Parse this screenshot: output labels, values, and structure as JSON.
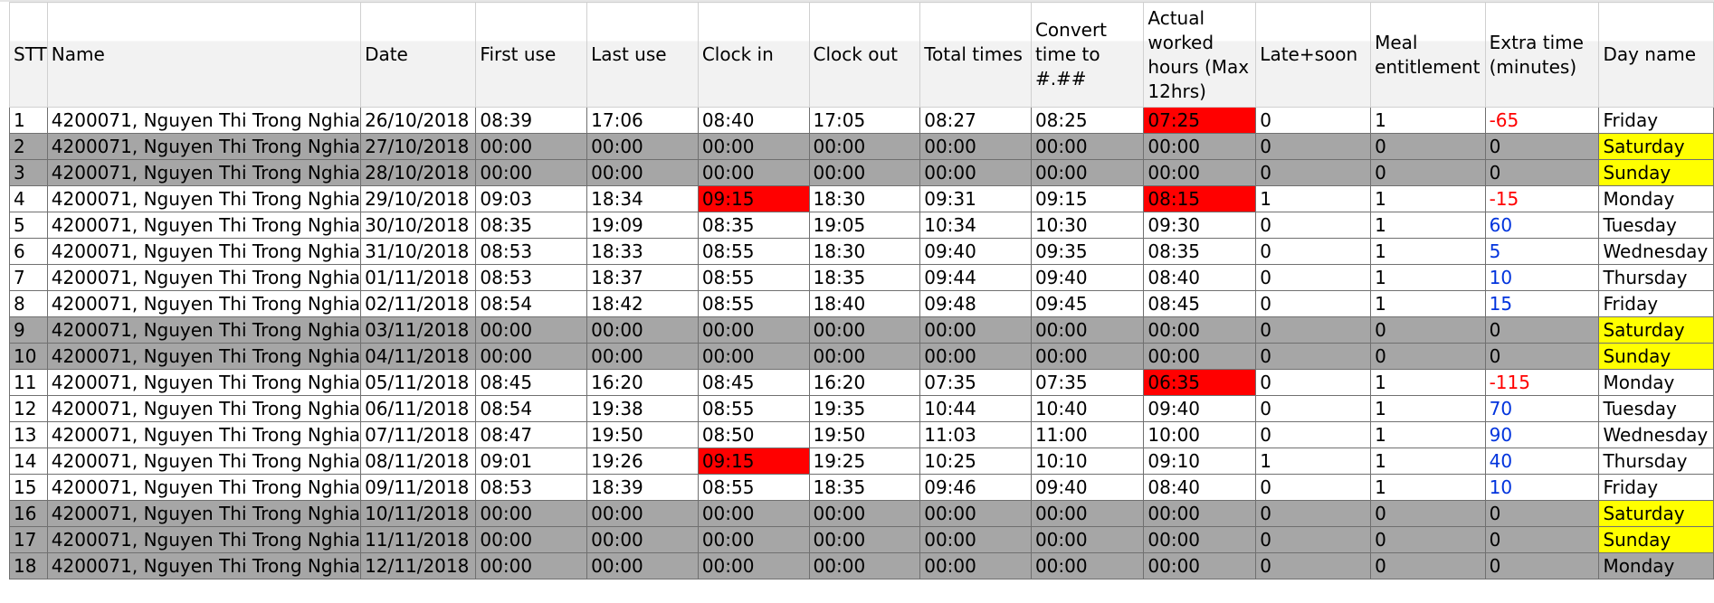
{
  "columns": [
    "STT",
    "Name",
    "Date",
    "First use",
    "Last use",
    "Clock in",
    "Clock out",
    "Total times",
    "Convert time to #.##",
    "Actual worked hours (Max 12hrs)",
    "Late+soon",
    "Meal entitlement",
    "Extra time (minutes)",
    "Day name"
  ],
  "rows": [
    [
      "1",
      "4200071, Nguyen Thi Trong Nghia",
      "26/10/2018",
      "08:39",
      "17:06",
      "08:40",
      "17:05",
      "08:27",
      "08:25",
      "07:25",
      "0",
      "1",
      "-65",
      "Friday"
    ],
    [
      "2",
      "4200071, Nguyen Thi Trong Nghia",
      "27/10/2018",
      "00:00",
      "00:00",
      "00:00",
      "00:00",
      "00:00",
      "00:00",
      "00:00",
      "0",
      "0",
      "0",
      "Saturday"
    ],
    [
      "3",
      "4200071, Nguyen Thi Trong Nghia",
      "28/10/2018",
      "00:00",
      "00:00",
      "00:00",
      "00:00",
      "00:00",
      "00:00",
      "00:00",
      "0",
      "0",
      "0",
      "Sunday"
    ],
    [
      "4",
      "4200071, Nguyen Thi Trong Nghia",
      "29/10/2018",
      "09:03",
      "18:34",
      "09:15",
      "18:30",
      "09:31",
      "09:15",
      "08:15",
      "1",
      "1",
      "-15",
      "Monday"
    ],
    [
      "5",
      "4200071, Nguyen Thi Trong Nghia",
      "30/10/2018",
      "08:35",
      "19:09",
      "08:35",
      "19:05",
      "10:34",
      "10:30",
      "09:30",
      "0",
      "1",
      "60",
      "Tuesday"
    ],
    [
      "6",
      "4200071, Nguyen Thi Trong Nghia",
      "31/10/2018",
      "08:53",
      "18:33",
      "08:55",
      "18:30",
      "09:40",
      "09:35",
      "08:35",
      "0",
      "1",
      "5",
      "Wednesday"
    ],
    [
      "7",
      "4200071, Nguyen Thi Trong Nghia",
      "01/11/2018",
      "08:53",
      "18:37",
      "08:55",
      "18:35",
      "09:44",
      "09:40",
      "08:40",
      "0",
      "1",
      "10",
      "Thursday"
    ],
    [
      "8",
      "4200071, Nguyen Thi Trong Nghia",
      "02/11/2018",
      "08:54",
      "18:42",
      "08:55",
      "18:40",
      "09:48",
      "09:45",
      "08:45",
      "0",
      "1",
      "15",
      "Friday"
    ],
    [
      "9",
      "4200071, Nguyen Thi Trong Nghia",
      "03/11/2018",
      "00:00",
      "00:00",
      "00:00",
      "00:00",
      "00:00",
      "00:00",
      "00:00",
      "0",
      "0",
      "0",
      "Saturday"
    ],
    [
      "10",
      "4200071, Nguyen Thi Trong Nghia",
      "04/11/2018",
      "00:00",
      "00:00",
      "00:00",
      "00:00",
      "00:00",
      "00:00",
      "00:00",
      "0",
      "0",
      "0",
      "Sunday"
    ],
    [
      "11",
      "4200071, Nguyen Thi Trong Nghia",
      "05/11/2018",
      "08:45",
      "16:20",
      "08:45",
      "16:20",
      "07:35",
      "07:35",
      "06:35",
      "0",
      "1",
      "-115",
      "Monday"
    ],
    [
      "12",
      "4200071, Nguyen Thi Trong Nghia",
      "06/11/2018",
      "08:54",
      "19:38",
      "08:55",
      "19:35",
      "10:44",
      "10:40",
      "09:40",
      "0",
      "1",
      "70",
      "Tuesday"
    ],
    [
      "13",
      "4200071, Nguyen Thi Trong Nghia",
      "07/11/2018",
      "08:47",
      "19:50",
      "08:50",
      "19:50",
      "11:03",
      "11:00",
      "10:00",
      "0",
      "1",
      "90",
      "Wednesday"
    ],
    [
      "14",
      "4200071, Nguyen Thi Trong Nghia",
      "08/11/2018",
      "09:01",
      "19:26",
      "09:15",
      "19:25",
      "10:25",
      "10:10",
      "09:10",
      "1",
      "1",
      "40",
      "Thursday"
    ],
    [
      "15",
      "4200071, Nguyen Thi Trong Nghia",
      "09/11/2018",
      "08:53",
      "18:39",
      "08:55",
      "18:35",
      "09:46",
      "09:40",
      "08:40",
      "0",
      "1",
      "10",
      "Friday"
    ],
    [
      "16",
      "4200071, Nguyen Thi Trong Nghia",
      "10/11/2018",
      "00:00",
      "00:00",
      "00:00",
      "00:00",
      "00:00",
      "00:00",
      "00:00",
      "0",
      "0",
      "0",
      "Saturday"
    ],
    [
      "17",
      "4200071, Nguyen Thi Trong Nghia",
      "11/11/2018",
      "00:00",
      "00:00",
      "00:00",
      "00:00",
      "00:00",
      "00:00",
      "00:00",
      "0",
      "0",
      "0",
      "Sunday"
    ],
    [
      "18",
      "4200071, Nguyen Thi Trong Nghia",
      "12/11/2018",
      "00:00",
      "00:00",
      "00:00",
      "00:00",
      "00:00",
      "00:00",
      "00:00",
      "0",
      "0",
      "0",
      "Monday"
    ]
  ],
  "weekend_rows": [
    2,
    3,
    9,
    10,
    16,
    17,
    18
  ],
  "red_highlights": [
    [
      1,
      9
    ],
    [
      4,
      5
    ],
    [
      4,
      9
    ],
    [
      11,
      9
    ],
    [
      14,
      5
    ]
  ],
  "yellow_days": [
    "Saturday",
    "Sunday"
  ],
  "colors": {
    "weekend_row": "#a6a6a6",
    "highlight_red": "#ff0000",
    "highlight_yellow": "#ffff00",
    "negative_text": "#ff0000",
    "positive_text": "#0033dd"
  }
}
